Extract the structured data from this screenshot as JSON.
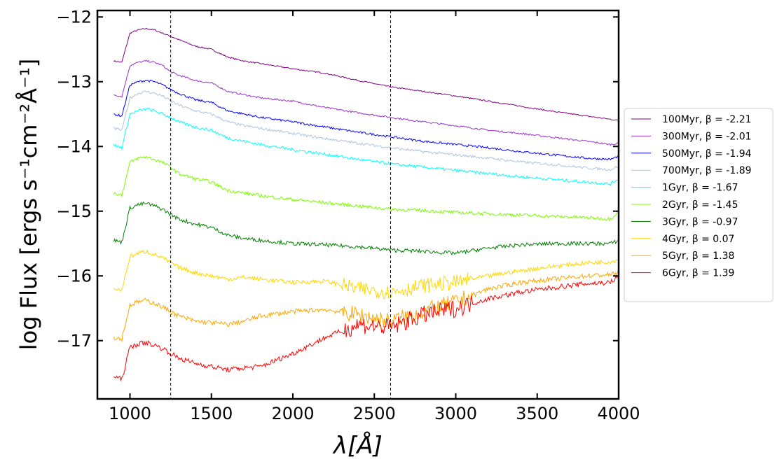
{
  "chart_data": {
    "type": "line",
    "title": "",
    "xlabel": "λ[Å]",
    "ylabel": "log Flux [ergs s⁻¹cm⁻²Å⁻¹]",
    "xlim": [
      800,
      4000
    ],
    "ylim": [
      -17.9,
      -11.9
    ],
    "xticks": [
      1000,
      1500,
      2000,
      2500,
      3000,
      3500,
      4000
    ],
    "yticks": [
      -12,
      -13,
      -14,
      -15,
      -16,
      -17
    ],
    "xtick_labels": [
      "1000",
      "1500",
      "2000",
      "2500",
      "3000",
      "3500",
      "4000"
    ],
    "ytick_labels": [
      "−12",
      "−13",
      "−14",
      "−15",
      "−16",
      "−17"
    ],
    "vlines": [
      1250,
      2600
    ],
    "legend_position": "center-right outside",
    "series": [
      {
        "name": "100Myr, β = -2.21",
        "color": "#800080",
        "x": [
          900,
          950,
          1000,
          1050,
          1100,
          1150,
          1200,
          1250,
          1300,
          1400,
          1500,
          1600,
          1700,
          1800,
          2000,
          2200,
          2400,
          2600,
          2800,
          3000,
          3200,
          3400,
          3600,
          3800,
          3950,
          4000
        ],
        "values": [
          -12.68,
          -12.7,
          -12.25,
          -12.2,
          -12.18,
          -12.2,
          -12.25,
          -12.3,
          -12.35,
          -12.45,
          -12.5,
          -12.62,
          -12.68,
          -12.72,
          -12.8,
          -12.87,
          -12.98,
          -13.08,
          -13.15,
          -13.22,
          -13.3,
          -13.38,
          -13.46,
          -13.53,
          -13.58,
          -13.6
        ]
      },
      {
        "name": "300Myr, β = -2.01",
        "color": "#9932cc",
        "x": [
          900,
          950,
          1000,
          1050,
          1100,
          1150,
          1200,
          1250,
          1300,
          1400,
          1500,
          1600,
          1700,
          1800,
          2000,
          2200,
          2400,
          2600,
          2800,
          3000,
          3200,
          3400,
          3600,
          3800,
          3950,
          4000
        ],
        "values": [
          -13.2,
          -13.23,
          -12.75,
          -12.7,
          -12.68,
          -12.7,
          -12.75,
          -12.85,
          -12.9,
          -12.98,
          -13.02,
          -13.15,
          -13.2,
          -13.25,
          -13.3,
          -13.4,
          -13.48,
          -13.55,
          -13.62,
          -13.68,
          -13.75,
          -13.8,
          -13.86,
          -13.92,
          -13.97,
          -13.95
        ]
      },
      {
        "name": "500Myr, β = -1.94",
        "color": "#0000ff",
        "x": [
          900,
          950,
          1000,
          1050,
          1100,
          1150,
          1200,
          1250,
          1300,
          1400,
          1500,
          1600,
          1700,
          1800,
          2000,
          2200,
          2400,
          2600,
          2800,
          3000,
          3200,
          3400,
          3600,
          3800,
          3950,
          4000
        ],
        "values": [
          -13.5,
          -13.53,
          -13.05,
          -13.0,
          -12.98,
          -13.0,
          -13.05,
          -13.12,
          -13.18,
          -13.28,
          -13.32,
          -13.45,
          -13.5,
          -13.55,
          -13.62,
          -13.7,
          -13.78,
          -13.85,
          -13.92,
          -13.97,
          -14.02,
          -14.08,
          -14.13,
          -14.18,
          -14.2,
          -14.15
        ]
      },
      {
        "name": "700Myr, β = -1.89",
        "color": "#b0c4de",
        "x": [
          900,
          950,
          1000,
          1050,
          1100,
          1150,
          1200,
          1250,
          1300,
          1400,
          1500,
          1600,
          1700,
          1800,
          2000,
          2200,
          2400,
          2600,
          2800,
          3000,
          3200,
          3400,
          3600,
          3800,
          3950,
          4000
        ],
        "values": [
          -13.72,
          -13.75,
          -13.25,
          -13.18,
          -13.15,
          -13.18,
          -13.22,
          -13.3,
          -13.36,
          -13.45,
          -13.5,
          -13.62,
          -13.68,
          -13.72,
          -13.8,
          -13.88,
          -13.95,
          -14.02,
          -14.08,
          -14.13,
          -14.18,
          -14.24,
          -14.28,
          -14.33,
          -14.36,
          -14.3
        ]
      },
      {
        "name": "1Gyr, β = -1.67",
        "color": "#00ffff",
        "x": [
          900,
          950,
          1000,
          1050,
          1100,
          1150,
          1200,
          1250,
          1300,
          1400,
          1500,
          1600,
          1700,
          1800,
          2000,
          2200,
          2400,
          2600,
          2800,
          3000,
          3200,
          3400,
          3600,
          3800,
          3950,
          4000
        ],
        "values": [
          -13.98,
          -14.02,
          -13.5,
          -13.45,
          -13.42,
          -13.45,
          -13.5,
          -13.55,
          -13.62,
          -13.7,
          -13.75,
          -13.87,
          -13.92,
          -13.97,
          -14.05,
          -14.12,
          -14.2,
          -14.27,
          -14.32,
          -14.37,
          -14.42,
          -14.47,
          -14.51,
          -14.55,
          -14.58,
          -14.5
        ]
      },
      {
        "name": "2Gyr, β = -1.45",
        "color": "#7cfc00",
        "x": [
          900,
          950,
          1000,
          1050,
          1100,
          1150,
          1200,
          1250,
          1300,
          1400,
          1500,
          1600,
          1700,
          1800,
          2000,
          2200,
          2400,
          2600,
          2800,
          3000,
          3200,
          3400,
          3600,
          3800,
          3950,
          4000
        ],
        "values": [
          -14.72,
          -14.75,
          -14.25,
          -14.18,
          -14.16,
          -14.2,
          -14.25,
          -14.32,
          -14.42,
          -14.5,
          -14.55,
          -14.68,
          -14.72,
          -14.76,
          -14.82,
          -14.87,
          -14.92,
          -14.97,
          -14.99,
          -15.02,
          -15.04,
          -15.06,
          -15.08,
          -15.1,
          -15.12,
          -15.0
        ]
      },
      {
        "name": "3Gyr, β = -0.97",
        "color": "#008000",
        "x": [
          900,
          950,
          1000,
          1050,
          1100,
          1150,
          1200,
          1250,
          1300,
          1400,
          1500,
          1600,
          1700,
          1800,
          2000,
          2200,
          2400,
          2600,
          2800,
          3000,
          3200,
          3400,
          3600,
          3800,
          3950,
          4000
        ],
        "values": [
          -15.45,
          -15.48,
          -14.95,
          -14.9,
          -14.88,
          -14.92,
          -14.97,
          -15.05,
          -15.12,
          -15.2,
          -15.25,
          -15.37,
          -15.42,
          -15.45,
          -15.5,
          -15.52,
          -15.55,
          -15.6,
          -15.62,
          -15.65,
          -15.57,
          -15.52,
          -15.5,
          -15.5,
          -15.5,
          -15.45
        ]
      },
      {
        "name": "4Gyr, β = 0.07",
        "color": "#ffd700",
        "x": [
          900,
          950,
          1000,
          1050,
          1100,
          1150,
          1200,
          1250,
          1300,
          1400,
          1500,
          1600,
          1700,
          1800,
          2000,
          2200,
          2400,
          2600,
          2800,
          3000,
          3200,
          3400,
          3600,
          3800,
          3950,
          4000
        ],
        "values": [
          -16.2,
          -16.22,
          -15.7,
          -15.65,
          -15.62,
          -15.67,
          -15.72,
          -15.8,
          -15.87,
          -15.95,
          -16.0,
          -16.05,
          -16.02,
          -16.05,
          -16.1,
          -16.08,
          -16.2,
          -16.25,
          -16.15,
          -16.1,
          -16.0,
          -15.92,
          -15.85,
          -15.8,
          -15.78,
          -15.75
        ]
      },
      {
        "name": "5Gyr, β = 1.38",
        "color": "#ffa500",
        "x": [
          900,
          950,
          1000,
          1050,
          1100,
          1150,
          1200,
          1250,
          1300,
          1400,
          1500,
          1600,
          1700,
          1800,
          2000,
          2200,
          2400,
          2600,
          2800,
          3000,
          3200,
          3400,
          3600,
          3800,
          3950,
          4000
        ],
        "values": [
          -16.95,
          -16.97,
          -16.45,
          -16.4,
          -16.38,
          -16.42,
          -16.48,
          -16.55,
          -16.62,
          -16.7,
          -16.72,
          -16.75,
          -16.7,
          -16.62,
          -16.55,
          -16.52,
          -16.6,
          -16.7,
          -16.55,
          -16.4,
          -16.2,
          -16.1,
          -16.05,
          -16.0,
          -15.98,
          -15.95
        ]
      },
      {
        "name": "6Gyr, β = 1.39",
        "color": "#ff0000",
        "x": [
          900,
          950,
          1000,
          1050,
          1100,
          1150,
          1200,
          1250,
          1300,
          1400,
          1500,
          1600,
          1700,
          1800,
          2000,
          2200,
          2400,
          2600,
          2800,
          3000,
          3200,
          3400,
          3600,
          3800,
          3950,
          4000
        ],
        "values": [
          -17.55,
          -17.6,
          -17.1,
          -17.05,
          -17.03,
          -17.07,
          -17.12,
          -17.2,
          -17.27,
          -17.35,
          -17.4,
          -17.45,
          -17.42,
          -17.4,
          -17.2,
          -16.95,
          -16.75,
          -16.8,
          -16.6,
          -16.5,
          -16.35,
          -16.25,
          -16.18,
          -16.12,
          -16.1,
          -16.0
        ]
      }
    ]
  }
}
